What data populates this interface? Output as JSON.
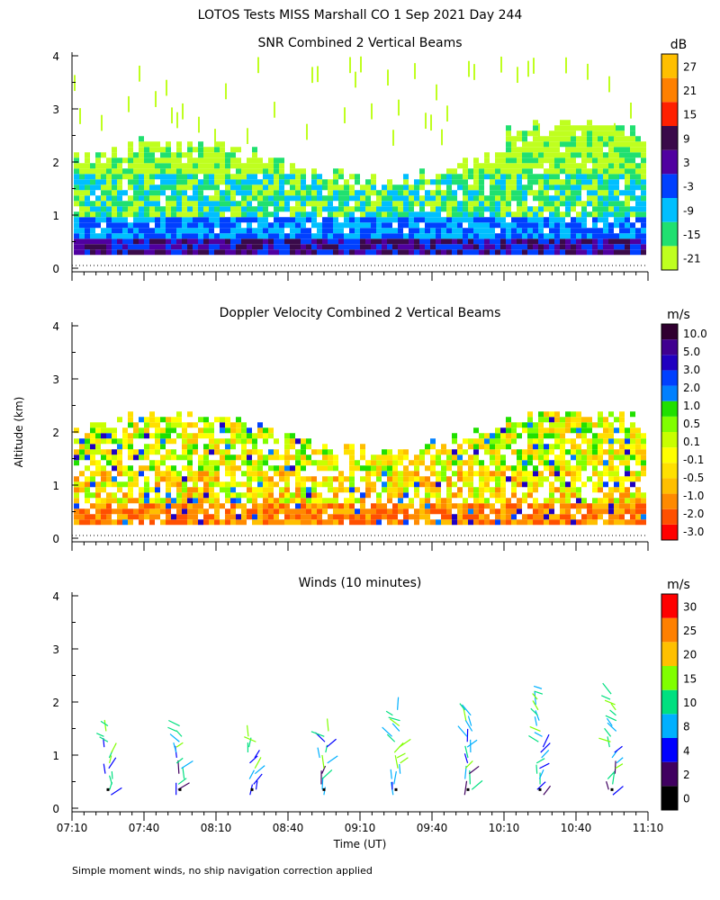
{
  "header": {
    "title": "LOTOS Tests MISS Marshall CO   1 Sep 2021 Day 244"
  },
  "footer": {
    "note": "Simple moment winds, no ship navigation correction applied"
  },
  "colors": {
    "snr_scale": [
      "#bfff1f",
      "#20e070",
      "#00bfff",
      "#0040ff",
      "#5000a0",
      "#3a0a4a",
      "#ff2000",
      "#ff8000",
      "#ffbf00"
    ],
    "velocity_scale": [
      "#ff0000",
      "#ff5000",
      "#ff8a00",
      "#ffbf00",
      "#ffe000",
      "#ffff00",
      "#c8ff00",
      "#80ff00",
      "#20e000",
      "#0080ff",
      "#0040ff",
      "#2000c0",
      "#400090",
      "#300030"
    ],
    "wind_scale": [
      "#000000",
      "#400060",
      "#0000ff",
      "#00b0ff",
      "#00e080",
      "#80ff00",
      "#ffc000",
      "#ff8000",
      "#ff0000"
    ]
  },
  "chart_data": [
    {
      "type": "heatmap",
      "title": "SNR Combined 2 Vertical Beams",
      "xlabel": "",
      "ylabel": "",
      "x_range": [
        "07:10",
        "11:10"
      ],
      "ylim": [
        0,
        4
      ],
      "y_ticks": [
        "0",
        "1",
        "2",
        "3",
        "4"
      ],
      "colorbar": {
        "unit": "dB",
        "labels": [
          "-21",
          "-15",
          "-9",
          "-3",
          "3",
          "9",
          "15",
          "21",
          "27"
        ]
      },
      "profile_summary": [
        {
          "altitude_km_range": [
            0.25,
            0.5
          ],
          "dominant_snr_dB": 9
        },
        {
          "altitude_km_range": [
            0.5,
            0.9
          ],
          "dominant_snr_dB": -3
        },
        {
          "altitude_km_range": [
            0.9,
            1.8
          ],
          "dominant_snr_dB": -15
        },
        {
          "altitude_km_range": [
            1.8,
            2.2
          ],
          "dominant_snr_dB": -21
        },
        {
          "altitude_km_range": [
            2.2,
            4.0
          ],
          "dominant_snr_dB": -21
        }
      ]
    },
    {
      "type": "heatmap",
      "title": "Doppler Velocity Combined 2 Vertical Beams",
      "xlabel": "",
      "ylabel": "Altitude (km)",
      "x_range": [
        "07:10",
        "11:10"
      ],
      "ylim": [
        0,
        4
      ],
      "y_ticks": [
        "0",
        "1",
        "2",
        "3",
        "4"
      ],
      "colorbar": {
        "unit": "m/s",
        "labels": [
          "-3.0",
          "-2.0",
          "-1.0",
          "-0.5",
          "-0.1",
          "0.1",
          "0.5",
          "1.0",
          "2.0",
          "3.0",
          "5.0",
          "10.0"
        ]
      },
      "profile_summary": [
        {
          "altitude_km_range": [
            0.25,
            0.6
          ],
          "dominant_velocity_ms": -2.0
        },
        {
          "altitude_km_range": [
            0.6,
            1.2
          ],
          "dominant_velocity_ms": -0.5
        },
        {
          "altitude_km_range": [
            1.2,
            2.2
          ],
          "dominant_velocity_ms": 0.1
        }
      ]
    },
    {
      "type": "scatter",
      "title": "Winds (10 minutes)",
      "xlabel": "Time (UT)",
      "ylabel": "",
      "x_ticks": [
        "07:10",
        "07:40",
        "08:10",
        "08:40",
        "09:10",
        "09:40",
        "10:10",
        "10:40",
        "11:10"
      ],
      "ylim": [
        0,
        4
      ],
      "y_ticks": [
        "0",
        "1",
        "2",
        "3",
        "4"
      ],
      "colorbar": {
        "unit": "m/s",
        "labels": [
          "0",
          "2",
          "4",
          "8",
          "10",
          "15",
          "20",
          "25",
          "30"
        ]
      },
      "profiles": [
        {
          "time": "07:25",
          "altitude_top_km": 1.65
        },
        {
          "time": "07:55",
          "altitude_top_km": 1.65
        },
        {
          "time": "08:25",
          "altitude_top_km": 1.35
        },
        {
          "time": "08:55",
          "altitude_top_km": 1.5
        },
        {
          "time": "09:25",
          "altitude_top_km": 1.95
        },
        {
          "time": "09:55",
          "altitude_top_km": 1.95
        },
        {
          "time": "10:25",
          "altitude_top_km": 2.35
        },
        {
          "time": "10:55",
          "altitude_top_km": 2.25
        }
      ]
    }
  ]
}
